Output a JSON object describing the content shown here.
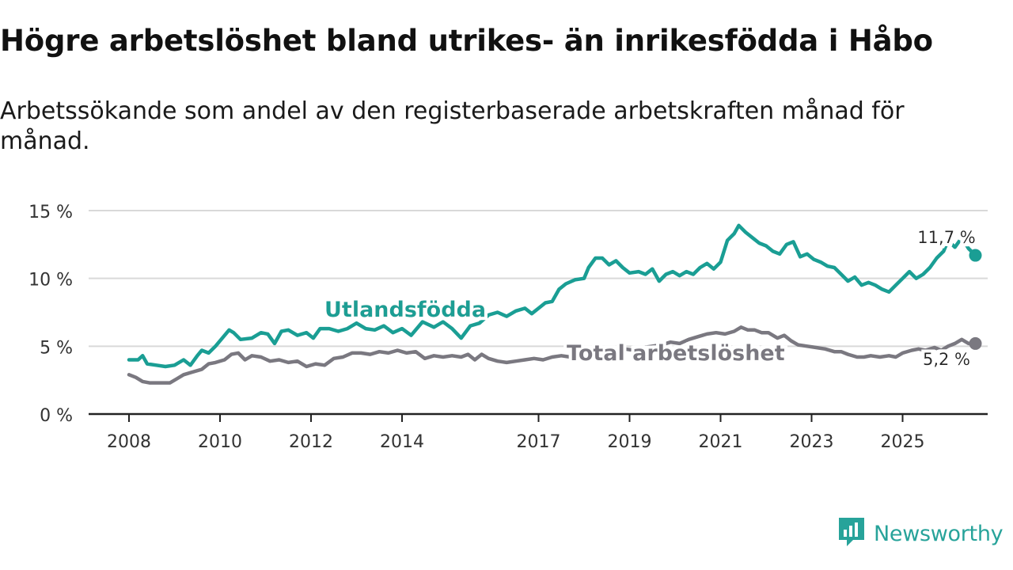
{
  "title": "Högre arbetslöshet bland utrikes- än inrikesfödda i Håbo",
  "subtitle": "Arbetssökande som andel av den registerbaserade arbetskraften månad för månad.",
  "brand": {
    "name": "Newsworthy",
    "logo_icon": "newsworthy-logo-icon",
    "color": "#27a39a"
  },
  "chart_data": {
    "type": "line",
    "title": "Högre arbetslöshet bland utrikes- än inrikesfödda i Håbo",
    "subtitle": "Arbetssökande som andel av den registerbaserade arbetskraften månad för månad.",
    "xlabel": "",
    "ylabel": "",
    "xlim": [
      2008.0,
      2026.0
    ],
    "ylim": [
      0,
      15
    ],
    "x_ticks": [
      2008,
      2010,
      2012,
      2014,
      2017,
      2019,
      2021,
      2023,
      2025
    ],
    "y_ticks": [
      {
        "value": 0,
        "label": "0 %"
      },
      {
        "value": 5,
        "label": "5 %"
      },
      {
        "value": 10,
        "label": "10 %"
      },
      {
        "value": 15,
        "label": "15 %"
      }
    ],
    "grid": true,
    "series": [
      {
        "name": "Utlandsfödda",
        "color": "#1a9e94",
        "end_label": "11,7 %",
        "points": [
          [
            2008.0,
            4.0
          ],
          [
            2008.2,
            4.0
          ],
          [
            2008.3,
            4.3
          ],
          [
            2008.4,
            3.7
          ],
          [
            2008.6,
            3.6
          ],
          [
            2008.8,
            3.5
          ],
          [
            2009.0,
            3.6
          ],
          [
            2009.2,
            4.0
          ],
          [
            2009.35,
            3.6
          ],
          [
            2009.5,
            4.3
          ],
          [
            2009.6,
            4.7
          ],
          [
            2009.75,
            4.5
          ],
          [
            2009.9,
            5.0
          ],
          [
            2010.05,
            5.6
          ],
          [
            2010.2,
            6.2
          ],
          [
            2010.3,
            6.0
          ],
          [
            2010.45,
            5.5
          ],
          [
            2010.7,
            5.6
          ],
          [
            2010.9,
            6.0
          ],
          [
            2011.05,
            5.9
          ],
          [
            2011.2,
            5.2
          ],
          [
            2011.35,
            6.1
          ],
          [
            2011.5,
            6.2
          ],
          [
            2011.7,
            5.8
          ],
          [
            2011.9,
            6.0
          ],
          [
            2012.05,
            5.6
          ],
          [
            2012.2,
            6.3
          ],
          [
            2012.4,
            6.3
          ],
          [
            2012.6,
            6.1
          ],
          [
            2012.8,
            6.3
          ],
          [
            2013.0,
            6.7
          ],
          [
            2013.2,
            6.3
          ],
          [
            2013.4,
            6.2
          ],
          [
            2013.6,
            6.5
          ],
          [
            2013.8,
            6.0
          ],
          [
            2014.0,
            6.3
          ],
          [
            2014.2,
            5.8
          ],
          [
            2014.45,
            6.8
          ],
          [
            2014.7,
            6.4
          ],
          [
            2014.9,
            6.8
          ],
          [
            2015.1,
            6.3
          ],
          [
            2015.3,
            5.6
          ],
          [
            2015.5,
            6.5
          ],
          [
            2015.7,
            6.7
          ],
          [
            2015.9,
            7.3
          ],
          [
            2016.1,
            7.5
          ],
          [
            2016.3,
            7.2
          ],
          [
            2016.5,
            7.6
          ],
          [
            2016.7,
            7.8
          ],
          [
            2016.85,
            7.4
          ],
          [
            2017.0,
            7.8
          ],
          [
            2017.15,
            8.2
          ],
          [
            2017.3,
            8.3
          ],
          [
            2017.45,
            9.2
          ],
          [
            2017.6,
            9.6
          ],
          [
            2017.8,
            9.9
          ],
          [
            2018.0,
            10.0
          ],
          [
            2018.1,
            10.8
          ],
          [
            2018.25,
            11.5
          ],
          [
            2018.4,
            11.5
          ],
          [
            2018.55,
            11.0
          ],
          [
            2018.7,
            11.3
          ],
          [
            2018.85,
            10.8
          ],
          [
            2019.0,
            10.4
          ],
          [
            2019.2,
            10.5
          ],
          [
            2019.35,
            10.3
          ],
          [
            2019.5,
            10.7
          ],
          [
            2019.65,
            9.8
          ],
          [
            2019.8,
            10.3
          ],
          [
            2019.95,
            10.5
          ],
          [
            2020.1,
            10.2
          ],
          [
            2020.25,
            10.5
          ],
          [
            2020.4,
            10.3
          ],
          [
            2020.55,
            10.8
          ],
          [
            2020.7,
            11.1
          ],
          [
            2020.85,
            10.7
          ],
          [
            2021.0,
            11.2
          ],
          [
            2021.15,
            12.8
          ],
          [
            2021.3,
            13.3
          ],
          [
            2021.4,
            13.9
          ],
          [
            2021.55,
            13.4
          ],
          [
            2021.7,
            13.0
          ],
          [
            2021.85,
            12.6
          ],
          [
            2022.0,
            12.4
          ],
          [
            2022.15,
            12.0
          ],
          [
            2022.3,
            11.8
          ],
          [
            2022.45,
            12.5
          ],
          [
            2022.6,
            12.7
          ],
          [
            2022.75,
            11.6
          ],
          [
            2022.9,
            11.8
          ],
          [
            2023.05,
            11.4
          ],
          [
            2023.2,
            11.2
          ],
          [
            2023.35,
            10.9
          ],
          [
            2023.5,
            10.8
          ],
          [
            2023.65,
            10.3
          ],
          [
            2023.8,
            9.8
          ],
          [
            2023.95,
            10.1
          ],
          [
            2024.1,
            9.5
          ],
          [
            2024.25,
            9.7
          ],
          [
            2024.4,
            9.5
          ],
          [
            2024.55,
            9.2
          ],
          [
            2024.7,
            9.0
          ],
          [
            2024.85,
            9.5
          ],
          [
            2025.0,
            10.0
          ],
          [
            2025.15,
            10.5
          ],
          [
            2025.3,
            10.0
          ],
          [
            2025.45,
            10.3
          ],
          [
            2025.6,
            10.8
          ],
          [
            2025.75,
            11.5
          ],
          [
            2025.9,
            12.0
          ],
          [
            2026.0,
            12.8
          ],
          [
            2026.15,
            12.3
          ],
          [
            2026.3,
            13.0
          ],
          [
            2026.45,
            12.2
          ],
          [
            2026.6,
            11.7
          ]
        ]
      },
      {
        "name": "Total arbetslöshet",
        "color": "#7a7880",
        "end_label": "5,2 %",
        "points": [
          [
            2008.0,
            2.9
          ],
          [
            2008.15,
            2.7
          ],
          [
            2008.3,
            2.4
          ],
          [
            2008.45,
            2.3
          ],
          [
            2008.7,
            2.3
          ],
          [
            2008.9,
            2.3
          ],
          [
            2009.05,
            2.6
          ],
          [
            2009.2,
            2.9
          ],
          [
            2009.4,
            3.1
          ],
          [
            2009.6,
            3.3
          ],
          [
            2009.75,
            3.7
          ],
          [
            2009.9,
            3.8
          ],
          [
            2010.1,
            4.0
          ],
          [
            2010.25,
            4.4
          ],
          [
            2010.4,
            4.5
          ],
          [
            2010.55,
            4.0
          ],
          [
            2010.7,
            4.3
          ],
          [
            2010.9,
            4.2
          ],
          [
            2011.1,
            3.9
          ],
          [
            2011.3,
            4.0
          ],
          [
            2011.5,
            3.8
          ],
          [
            2011.7,
            3.9
          ],
          [
            2011.9,
            3.5
          ],
          [
            2012.1,
            3.7
          ],
          [
            2012.3,
            3.6
          ],
          [
            2012.5,
            4.1
          ],
          [
            2012.7,
            4.2
          ],
          [
            2012.9,
            4.5
          ],
          [
            2013.1,
            4.5
          ],
          [
            2013.3,
            4.4
          ],
          [
            2013.5,
            4.6
          ],
          [
            2013.7,
            4.5
          ],
          [
            2013.9,
            4.7
          ],
          [
            2014.1,
            4.5
          ],
          [
            2014.3,
            4.6
          ],
          [
            2014.5,
            4.1
          ],
          [
            2014.7,
            4.3
          ],
          [
            2014.9,
            4.2
          ],
          [
            2015.1,
            4.3
          ],
          [
            2015.3,
            4.2
          ],
          [
            2015.45,
            4.4
          ],
          [
            2015.6,
            4.0
          ],
          [
            2015.75,
            4.4
          ],
          [
            2015.9,
            4.1
          ],
          [
            2016.1,
            3.9
          ],
          [
            2016.3,
            3.8
          ],
          [
            2016.5,
            3.9
          ],
          [
            2016.7,
            4.0
          ],
          [
            2016.9,
            4.1
          ],
          [
            2017.1,
            4.0
          ],
          [
            2017.3,
            4.2
          ],
          [
            2017.5,
            4.3
          ],
          [
            2017.7,
            4.2
          ],
          [
            2017.9,
            4.3
          ],
          [
            2018.1,
            4.4
          ],
          [
            2018.3,
            4.6
          ],
          [
            2018.5,
            4.5
          ],
          [
            2018.7,
            4.6
          ],
          [
            2018.9,
            4.8
          ],
          [
            2019.1,
            4.7
          ],
          [
            2019.3,
            4.9
          ],
          [
            2019.5,
            5.0
          ],
          [
            2019.7,
            5.1
          ],
          [
            2019.9,
            5.3
          ],
          [
            2020.1,
            5.2
          ],
          [
            2020.3,
            5.5
          ],
          [
            2020.5,
            5.7
          ],
          [
            2020.7,
            5.9
          ],
          [
            2020.9,
            6.0
          ],
          [
            2021.1,
            5.9
          ],
          [
            2021.3,
            6.1
          ],
          [
            2021.45,
            6.4
          ],
          [
            2021.6,
            6.2
          ],
          [
            2021.75,
            6.2
          ],
          [
            2021.9,
            6.0
          ],
          [
            2022.05,
            6.0
          ],
          [
            2022.25,
            5.6
          ],
          [
            2022.4,
            5.8
          ],
          [
            2022.55,
            5.4
          ],
          [
            2022.7,
            5.1
          ],
          [
            2022.9,
            5.0
          ],
          [
            2023.1,
            4.9
          ],
          [
            2023.3,
            4.8
          ],
          [
            2023.5,
            4.6
          ],
          [
            2023.65,
            4.6
          ],
          [
            2023.8,
            4.4
          ],
          [
            2024.0,
            4.2
          ],
          [
            2024.15,
            4.2
          ],
          [
            2024.3,
            4.3
          ],
          [
            2024.5,
            4.2
          ],
          [
            2024.7,
            4.3
          ],
          [
            2024.85,
            4.2
          ],
          [
            2025.0,
            4.5
          ],
          [
            2025.2,
            4.7
          ],
          [
            2025.35,
            4.8
          ],
          [
            2025.5,
            4.7
          ],
          [
            2025.7,
            4.9
          ],
          [
            2025.85,
            4.7
          ],
          [
            2026.0,
            5.0
          ],
          [
            2026.15,
            5.2
          ],
          [
            2026.3,
            5.5
          ],
          [
            2026.45,
            5.2
          ],
          [
            2026.6,
            5.2
          ]
        ]
      }
    ]
  }
}
